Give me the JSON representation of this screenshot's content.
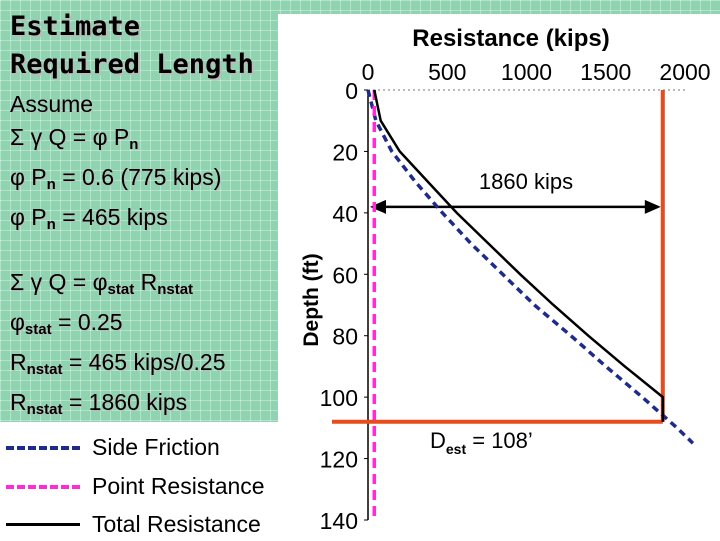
{
  "slide": {
    "title_line1": "Estimate",
    "title_line2": "Required Length",
    "assume_label": "Assume",
    "eq1": "Σ γ Q = φ P",
    "eq1_sub": "n",
    "eq2_a": "φ P",
    "eq2_sub": "n",
    "eq2_b": " = 0.6 (775 kips)",
    "eq3_a": "φ P",
    "eq3_sub": "n",
    "eq3_b": " = 465 kips",
    "eq4_a": "Σ γ Q = φ",
    "eq4_sub1": "stat",
    "eq4_b": " R",
    "eq4_sub2": "nstat",
    "eq5_a": "φ",
    "eq5_sub": "stat",
    "eq5_b": " = 0.25",
    "eq6_a": "R",
    "eq6_sub": "nstat",
    "eq6_b": " = 465 kips/0.25",
    "eq7_a": "R",
    "eq7_sub": "nstat",
    "eq7_b": " = 1860 kips",
    "colors": {
      "background": "#8fd3b0",
      "panel": "#ffffff"
    }
  },
  "chart_data": {
    "type": "line",
    "title": "Resistance (kips)",
    "xlabel": "Resistance (kips)",
    "ylabel": "Depth (ft)",
    "x_ticks": [
      0,
      500,
      1000,
      1500,
      2000
    ],
    "y_ticks": [
      0,
      20,
      40,
      60,
      80,
      100,
      120,
      140
    ],
    "xlim": [
      0,
      2000
    ],
    "ylim": [
      0,
      140
    ],
    "x_axis_position": "top",
    "y_axis_reversed": true,
    "grid": false,
    "series": [
      {
        "name": "Side Friction",
        "style": "dashed",
        "color": "#1f2b8c",
        "points": [
          [
            0,
            0
          ],
          [
            50,
            10
          ],
          [
            150,
            20
          ],
          [
            300,
            30
          ],
          [
            470,
            40
          ],
          [
            650,
            50
          ],
          [
            850,
            60
          ],
          [
            1050,
            70
          ],
          [
            1280,
            80
          ],
          [
            1500,
            90
          ],
          [
            1730,
            100
          ],
          [
            1950,
            110
          ],
          [
            2050,
            115
          ]
        ]
      },
      {
        "name": "Point Resistance",
        "style": "dashed",
        "color": "#ff2bd6",
        "points": [
          [
            40,
            0
          ],
          [
            40,
            20
          ],
          [
            40,
            40
          ],
          [
            40,
            60
          ],
          [
            40,
            80
          ],
          [
            40,
            100
          ],
          [
            40,
            120
          ],
          [
            40,
            140
          ]
        ]
      },
      {
        "name": "Total Resistance",
        "style": "solid",
        "color": "#000000",
        "points": [
          [
            40,
            0
          ],
          [
            80,
            10
          ],
          [
            200,
            20
          ],
          [
            380,
            30
          ],
          [
            560,
            40
          ],
          [
            760,
            50
          ],
          [
            960,
            60
          ],
          [
            1170,
            70
          ],
          [
            1390,
            80
          ],
          [
            1620,
            90
          ],
          [
            1860,
            100
          ],
          [
            1860,
            108
          ]
        ]
      }
    ],
    "annotations": [
      {
        "text": "1860 kips",
        "x_value": 1860
      },
      {
        "text": "D",
        "sub": "est",
        "suffix": " = 108’",
        "y_value": 108
      }
    ],
    "legend": {
      "placement": "bottom-left",
      "entries": [
        "Side Friction",
        "Point Resistance",
        "Total Resistance"
      ]
    },
    "reference_lines": [
      {
        "orientation": "vertical",
        "x_value": 1860,
        "color": "#e84c1c"
      },
      {
        "orientation": "horizontal",
        "y_value": 108,
        "color": "#e84c1c"
      }
    ]
  }
}
